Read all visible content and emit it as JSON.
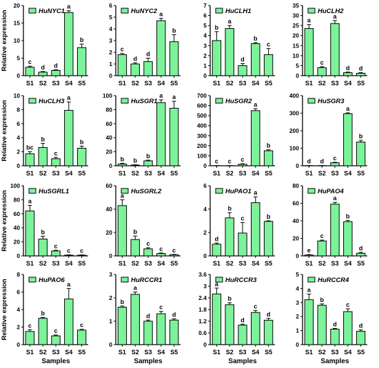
{
  "chart_data": [
    {
      "type": "bar",
      "panel": "HuNYC1",
      "legend": "HuNYC1",
      "categories": [
        "S1",
        "S2",
        "S3",
        "S4",
        "S5"
      ],
      "values": [
        2.4,
        1.0,
        1.5,
        18.0,
        8.0
      ],
      "errors": [
        0.3,
        0.2,
        0.2,
        0.5,
        1.0
      ],
      "letters": [
        "c",
        "d",
        "d",
        "a",
        "b"
      ],
      "ylim": [
        0,
        20
      ],
      "yticks": [
        0,
        5,
        10,
        15,
        20
      ],
      "ylabel": "Relative expression",
      "xlabel": ""
    },
    {
      "type": "bar",
      "panel": "HuNYC2",
      "legend": "HuNYC2",
      "categories": [
        "S1",
        "S2",
        "S3",
        "S4",
        "S5"
      ],
      "values": [
        1.8,
        1.0,
        1.2,
        4.7,
        2.9
      ],
      "errors": [
        0.1,
        0.1,
        0.3,
        0.2,
        0.6
      ],
      "letters": [
        "c",
        "d",
        "d",
        "a",
        "b"
      ],
      "ylim": [
        0,
        6
      ],
      "yticks": [
        0,
        1,
        2,
        3,
        4,
        5,
        6
      ],
      "ylabel": "",
      "xlabel": ""
    },
    {
      "type": "bar",
      "panel": "HuCLH1",
      "legend": "HuCLH1",
      "categories": [
        "S1",
        "S2",
        "S3",
        "S4",
        "S5"
      ],
      "values": [
        3.5,
        4.7,
        1.0,
        3.2,
        2.1
      ],
      "errors": [
        0.9,
        0.3,
        0.2,
        0.1,
        0.6
      ],
      "letters": [
        "b",
        "a",
        "d",
        "b",
        "c"
      ],
      "ylim": [
        0,
        7
      ],
      "yticks": [
        0,
        1,
        2,
        3,
        4,
        5,
        6,
        7
      ],
      "ylabel": "",
      "xlabel": ""
    },
    {
      "type": "bar",
      "panel": "HuCLH2",
      "legend": "HuCLH2",
      "categories": [
        "S1",
        "S2",
        "S3",
        "S4",
        "S5"
      ],
      "values": [
        23.5,
        4.0,
        26.0,
        1.5,
        1.2
      ],
      "errors": [
        2.0,
        0.5,
        1.5,
        0.3,
        0.3
      ],
      "letters": [
        "a",
        "c",
        "a",
        "d",
        "d"
      ],
      "ylim": [
        0,
        35
      ],
      "yticks": [
        0,
        5,
        10,
        15,
        20,
        25,
        30,
        35
      ],
      "ylabel": "",
      "xlabel": ""
    },
    {
      "type": "bar",
      "panel": "HuCLH3",
      "legend": "HuCLH3",
      "categories": [
        "S1",
        "S2",
        "S3",
        "S4",
        "S5"
      ],
      "values": [
        1.7,
        2.6,
        1.0,
        7.9,
        2.5
      ],
      "errors": [
        0.3,
        0.6,
        0.2,
        1.2,
        0.3
      ],
      "letters": [
        "bc",
        "b",
        "c",
        "a",
        "b"
      ],
      "ylim": [
        0,
        10
      ],
      "yticks": [
        0,
        2,
        4,
        6,
        8,
        10
      ],
      "ylabel": "Relative expression",
      "xlabel": ""
    },
    {
      "type": "bar",
      "panel": "HuSGR1",
      "legend": "HuSGR1",
      "categories": [
        "S1",
        "S2",
        "S3",
        "S4",
        "S5"
      ],
      "values": [
        2.5,
        1.0,
        7.0,
        90.0,
        82.0
      ],
      "errors": [
        1.0,
        0.5,
        1.0,
        4.0,
        10.0
      ],
      "letters": [
        "b",
        "b",
        "b",
        "a",
        "a"
      ],
      "ylim": [
        0,
        100
      ],
      "yticks": [
        0,
        20,
        40,
        60,
        80,
        100
      ],
      "ylabel": "",
      "xlabel": ""
    },
    {
      "type": "bar",
      "panel": "HuSGR2",
      "legend": "HuSGR2",
      "categories": [
        "S1",
        "S2",
        "S3",
        "S4",
        "S5"
      ],
      "values": [
        1,
        1,
        15,
        550,
        150
      ],
      "errors": [
        1,
        1,
        5,
        20,
        10
      ],
      "letters": [
        "c",
        "c",
        "c",
        "a",
        "b"
      ],
      "ylim": [
        0,
        700
      ],
      "yticks": [
        0,
        100,
        200,
        300,
        400,
        500,
        600,
        700
      ],
      "ylabel": "",
      "xlabel": ""
    },
    {
      "type": "bar",
      "panel": "HuSGR3",
      "legend": "HuSGR3",
      "categories": [
        "S1",
        "S2",
        "S3",
        "S4",
        "S5"
      ],
      "values": [
        1,
        1,
        17,
        297,
        135
      ],
      "errors": [
        0.5,
        0.5,
        3,
        5,
        10
      ],
      "letters": [
        "d",
        "d",
        "c",
        "a",
        "b"
      ],
      "ylim": [
        0,
        400
      ],
      "yticks": [
        0,
        100,
        200,
        300,
        400
      ],
      "ylabel": "",
      "xlabel": ""
    },
    {
      "type": "bar",
      "panel": "HuSGRL1",
      "legend": "HuSGRL1",
      "categories": [
        "S1",
        "S2",
        "S3",
        "S4",
        "S5"
      ],
      "values": [
        64,
        24,
        7,
        1,
        1
      ],
      "errors": [
        8,
        4,
        1,
        0.5,
        0.5
      ],
      "letters": [
        "a",
        "b",
        "c",
        "c",
        "c"
      ],
      "ylim": [
        0,
        100
      ],
      "yticks": [
        0,
        20,
        40,
        60,
        80,
        100
      ],
      "ylabel": "Relative expression",
      "xlabel": ""
    },
    {
      "type": "bar",
      "panel": "HuSGRL2",
      "legend": "HuSGRL2",
      "categories": [
        "S1",
        "S2",
        "S3",
        "S4",
        "S5"
      ],
      "values": [
        43,
        14,
        6,
        2,
        1
      ],
      "errors": [
        5,
        3,
        1,
        0.5,
        0.3
      ],
      "letters": [
        "a",
        "b",
        "c",
        "c",
        "c"
      ],
      "ylim": [
        0,
        60
      ],
      "yticks": [
        0,
        20,
        40,
        60
      ],
      "ylabel": "",
      "xlabel": ""
    },
    {
      "type": "bar",
      "panel": "HuPAO1",
      "legend": "HuPAO1",
      "categories": [
        "S1",
        "S2",
        "S3",
        "S4",
        "S5"
      ],
      "values": [
        1.0,
        3.25,
        1.95,
        4.55,
        2.95
      ],
      "errors": [
        0.1,
        0.45,
        0.9,
        0.5,
        0.05
      ],
      "letters": [
        "d",
        "b",
        "c",
        "a",
        "b"
      ],
      "ylim": [
        0,
        6
      ],
      "yticks": [
        0,
        2,
        4,
        6
      ],
      "ylabel": "",
      "xlabel": ""
    },
    {
      "type": "bar",
      "panel": "HuPAO4",
      "legend": "HuPAO4",
      "categories": [
        "S1",
        "S2",
        "S3",
        "S4",
        "S5"
      ],
      "values": [
        1,
        17,
        59,
        39,
        3
      ],
      "errors": [
        0.5,
        1,
        2,
        1.5,
        1
      ],
      "letters": [
        "e",
        "c",
        "a",
        "b",
        "d"
      ],
      "ylim": [
        0,
        80
      ],
      "yticks": [
        0,
        20,
        40,
        60,
        80
      ],
      "ylabel": "",
      "xlabel": ""
    },
    {
      "type": "bar",
      "panel": "HuPAO6",
      "legend": "HuPAO6",
      "categories": [
        "S1",
        "S2",
        "S3",
        "S4",
        "S5"
      ],
      "values": [
        1.5,
        3.0,
        1.0,
        5.2,
        1.65
      ],
      "errors": [
        0.2,
        0.1,
        0.1,
        1.2,
        0.1
      ],
      "letters": [
        "c",
        "b",
        "c",
        "a",
        "c"
      ],
      "ylim": [
        0,
        8
      ],
      "yticks": [
        0,
        2,
        4,
        6,
        8
      ],
      "ylabel": "Relative expression",
      "xlabel": "Samples"
    },
    {
      "type": "bar",
      "panel": "HuRCCR1",
      "legend": "HuRCCR1",
      "categories": [
        "S1",
        "S2",
        "S3",
        "S4",
        "S5"
      ],
      "values": [
        1.6,
        2.15,
        1.0,
        1.32,
        1.05
      ],
      "errors": [
        0.05,
        0.1,
        0.05,
        0.1,
        0.05
      ],
      "letters": [
        "b",
        "a",
        "d",
        "c",
        "d"
      ],
      "ylim": [
        0,
        3
      ],
      "yticks": [
        0,
        1,
        2,
        3
      ],
      "ylabel": "",
      "xlabel": "Samples"
    },
    {
      "type": "bar",
      "panel": "HuRCCR3",
      "legend": "HuRCCR3",
      "categories": [
        "S1",
        "S2",
        "S3",
        "S4",
        "S5"
      ],
      "values": [
        2.6,
        2.05,
        1.0,
        1.65,
        1.25
      ],
      "errors": [
        0.3,
        0.1,
        0.05,
        0.1,
        0.1
      ],
      "letters": [
        "a",
        "b",
        "d",
        "c",
        "d"
      ],
      "ylim": [
        0,
        3.6
      ],
      "yticks": [
        0,
        0.6,
        1.2,
        1.8,
        2.4,
        3.0,
        3.6
      ],
      "ylabel": "",
      "xlabel": "Samples"
    },
    {
      "type": "bar",
      "panel": "HuRCCR4",
      "legend": "HuRCCR4",
      "categories": [
        "S1",
        "S2",
        "S3",
        "S4",
        "S5"
      ],
      "values": [
        3.2,
        2.8,
        1.1,
        2.35,
        0.95
      ],
      "errors": [
        0.4,
        0.1,
        0.05,
        0.2,
        0.1
      ],
      "letters": [
        "a",
        "b",
        "d",
        "c",
        "d"
      ],
      "ylim": [
        0,
        5
      ],
      "yticks": [
        0,
        1,
        2,
        3,
        4,
        5
      ],
      "ylabel": "",
      "xlabel": "Samples"
    }
  ],
  "style": {
    "bar_fill": "#7CF39A",
    "bar_stroke": "#000000",
    "text_color": "#000000"
  }
}
